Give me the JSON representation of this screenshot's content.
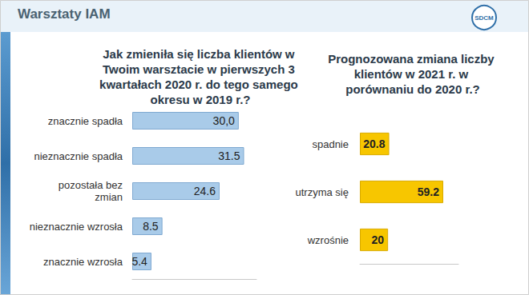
{
  "header": {
    "title": "Warsztaty IAM",
    "logo": "SDCM"
  },
  "chart_data": [
    {
      "type": "bar",
      "orientation": "horizontal",
      "title": "Jak zmieniła się liczba klientów w Twoim warsztacie w pierwszych 3 kwartałach 2020 r. do tego samego okresu w 2019 r.?",
      "categories": [
        "znacznie spadła",
        "nieznacznie spadła",
        "pozostała bez zmian",
        "nieznacznie wzrosła",
        "znacznie wzrosła"
      ],
      "values": [
        30,
        31.5,
        24.6,
        8.5,
        5.4
      ],
      "value_labels": [
        "30,0",
        "31.5",
        "24.6",
        "8.5",
        "5.4"
      ],
      "color": "#a9cbe9",
      "xlim": [
        0,
        35
      ],
      "data_labels": true,
      "tick_labels": "y",
      "grid": false
    },
    {
      "type": "bar",
      "orientation": "horizontal",
      "title": "Prognozowana zmiana liczby klientów w 2021 r. w porównaniu do 2020 r.?",
      "categories": [
        "spadnie",
        "utrzyma się",
        "wzrośnie"
      ],
      "values": [
        20.8,
        59.2,
        20
      ],
      "color": "#f7c600",
      "xlim": [
        0,
        70
      ],
      "data_labels": true,
      "tick_labels": "y",
      "grid": false
    }
  ]
}
